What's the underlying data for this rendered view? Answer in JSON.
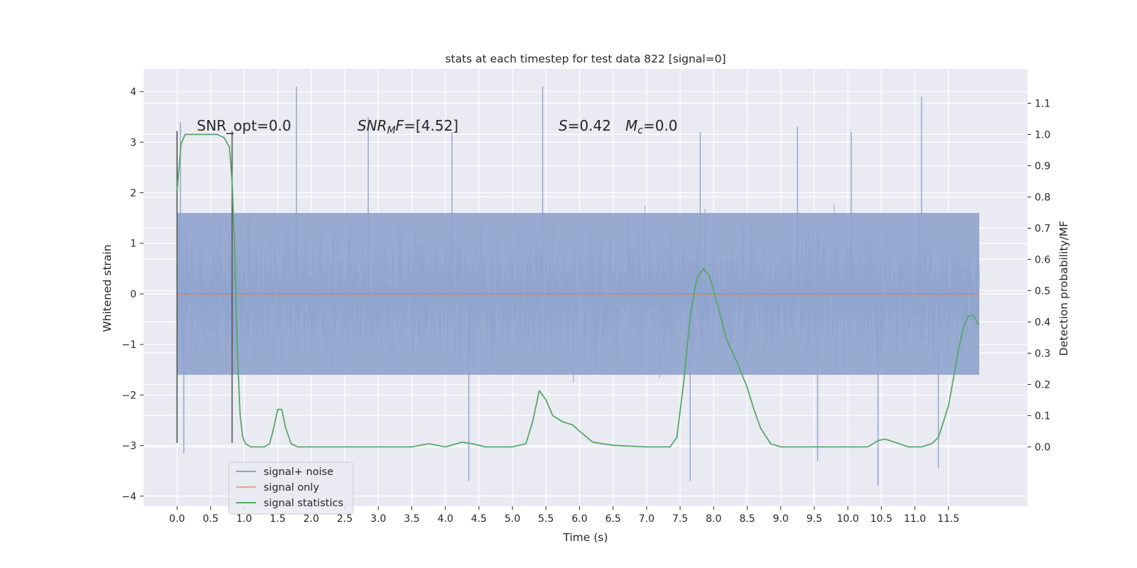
{
  "chart_data": {
    "type": "line",
    "title": "stats at each timestep for test data 822 [signal=0]",
    "xlabel": "Time (s)",
    "ylabel_left": "Whitened strain",
    "ylabel_right": "Detection probability/MF",
    "xlim": [
      -0.5,
      12.68
    ],
    "ylim_left": [
      -4.2,
      4.45
    ],
    "ylim_right": [
      -0.19,
      1.21
    ],
    "grid": true,
    "x_ticks": [
      "0.0",
      "0.5",
      "1.0",
      "1.5",
      "2.0",
      "2.5",
      "3.0",
      "3.5",
      "4.0",
      "4.5",
      "5.0",
      "5.5",
      "6.0",
      "6.5",
      "7.0",
      "7.5",
      "8.0",
      "8.5",
      "9.0",
      "9.5",
      "10.0",
      "10.5",
      "11.0",
      "11.5"
    ],
    "y_ticks_left": [
      "−4",
      "−3",
      "−2",
      "−1",
      "0",
      "1",
      "2",
      "3",
      "4"
    ],
    "y_ticks_right": [
      "0.0",
      "0.1",
      "0.2",
      "0.3",
      "0.4",
      "0.5",
      "0.6",
      "0.7",
      "0.8",
      "0.9",
      "1.0",
      "1.1"
    ],
    "annotations": {
      "snr_opt": "SNR_opt=0.0",
      "snr_mf_italic": "SNR",
      "snr_mf_sub": "M",
      "snr_mf_rest_italic": "F",
      "snr_mf_value": "=[4.52]",
      "s_italic": "S",
      "s_value": "=0.42",
      "mc_italic": "M",
      "mc_sub": "c",
      "mc_value": "=0.0"
    },
    "legend": {
      "placement": "lower-left",
      "entries": [
        "signal+ noise",
        "signal only",
        "signal statistics"
      ]
    },
    "colors": {
      "signal_noise": "#8fa3cc",
      "signal_only": "#dd8452",
      "signal_statistics": "#55a868",
      "background": "#eaeaf2",
      "grid": "#ffffff",
      "window_markers": "#555555"
    },
    "series": [
      {
        "name": "signal+ noise",
        "axis": "left",
        "style": "noise",
        "x_range": [
          0.0,
          11.96
        ],
        "typical_range": [
          -1.6,
          1.6
        ],
        "peak_points": [
          {
            "x": 0.05,
            "y": 3.4
          },
          {
            "x": 1.78,
            "y": 4.1
          },
          {
            "x": 5.45,
            "y": 4.1
          },
          {
            "x": 11.1,
            "y": 3.9
          },
          {
            "x": 7.8,
            "y": 3.2
          },
          {
            "x": 4.1,
            "y": 3.2
          },
          {
            "x": 2.85,
            "y": 3.5
          },
          {
            "x": 9.25,
            "y": 3.3
          },
          {
            "x": 10.05,
            "y": 3.2
          },
          {
            "x": 4.35,
            "y": -3.7
          },
          {
            "x": 7.65,
            "y": -3.7
          },
          {
            "x": 10.45,
            "y": -3.8
          },
          {
            "x": 11.35,
            "y": -3.45
          },
          {
            "x": 0.1,
            "y": -3.15
          },
          {
            "x": 9.55,
            "y": -3.3
          }
        ]
      },
      {
        "name": "signal only",
        "axis": "left",
        "x": [
          0.0,
          11.96
        ],
        "y": [
          0.0,
          0.0
        ]
      },
      {
        "name": "signal statistics",
        "axis": "right",
        "x": [
          0.0,
          0.06,
          0.12,
          0.2,
          0.3,
          0.45,
          0.6,
          0.7,
          0.78,
          0.82,
          0.86,
          0.9,
          0.94,
          0.98,
          1.02,
          1.1,
          1.2,
          1.3,
          1.38,
          1.44,
          1.5,
          1.56,
          1.62,
          1.7,
          1.8,
          2.0,
          2.3,
          2.6,
          3.0,
          3.5,
          3.75,
          4.0,
          4.25,
          4.4,
          4.6,
          5.0,
          5.2,
          5.3,
          5.4,
          5.5,
          5.6,
          5.75,
          5.9,
          6.0,
          6.2,
          6.5,
          7.0,
          7.35,
          7.45,
          7.55,
          7.65,
          7.75,
          7.85,
          7.93,
          8.0,
          8.1,
          8.2,
          8.35,
          8.5,
          8.6,
          8.7,
          8.85,
          9.0,
          9.5,
          10.0,
          10.3,
          10.45,
          10.55,
          10.7,
          10.9,
          11.1,
          11.25,
          11.35,
          11.5,
          11.65,
          11.72,
          11.8,
          11.88,
          11.95
        ],
        "y": [
          0.82,
          0.97,
          1.0,
          1.0,
          1.0,
          1.0,
          1.0,
          0.99,
          0.96,
          0.85,
          0.62,
          0.3,
          0.1,
          0.03,
          0.01,
          0.0,
          0.0,
          0.0,
          0.01,
          0.06,
          0.12,
          0.12,
          0.06,
          0.01,
          0.0,
          0.0,
          0.0,
          0.0,
          0.0,
          0.0,
          0.01,
          0.0,
          0.015,
          0.01,
          0.0,
          0.0,
          0.01,
          0.08,
          0.18,
          0.15,
          0.1,
          0.08,
          0.07,
          0.05,
          0.015,
          0.005,
          0.0,
          0.0,
          0.03,
          0.2,
          0.42,
          0.54,
          0.57,
          0.55,
          0.5,
          0.42,
          0.34,
          0.27,
          0.19,
          0.12,
          0.06,
          0.01,
          0.0,
          0.0,
          0.0,
          0.0,
          0.02,
          0.025,
          0.015,
          0.0,
          0.0,
          0.01,
          0.03,
          0.13,
          0.31,
          0.38,
          0.42,
          0.42,
          0.39
        ]
      }
    ],
    "window_markers": [
      {
        "x": 0.0,
        "y_min": -2.95,
        "y_max": 3.22
      },
      {
        "x": 0.82,
        "y_min": -2.95,
        "y_max": 3.22
      }
    ]
  }
}
